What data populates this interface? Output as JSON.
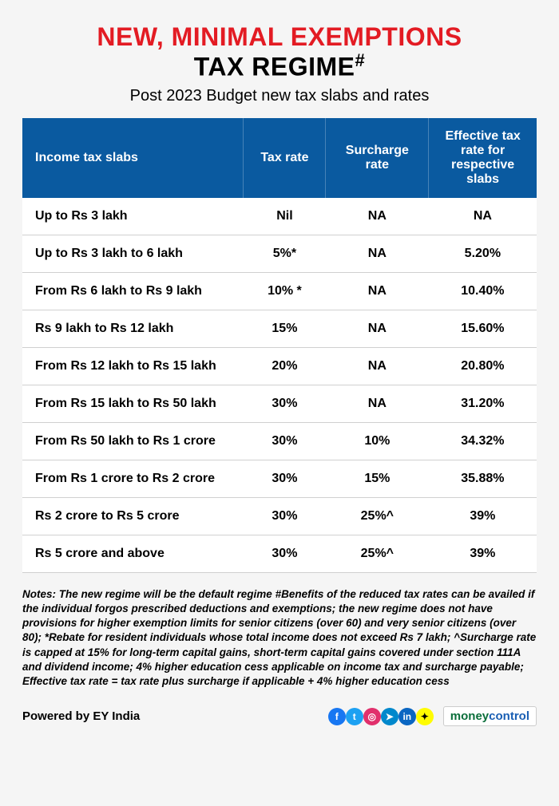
{
  "header": {
    "title_line1": "NEW, MINIMAL EXEMPTIONS",
    "title_line2_pre": "TAX REGIME",
    "title_line2_sup": "#",
    "title_color": "#e31b23",
    "subtitle": "Post 2023 Budget new tax slabs and rates"
  },
  "table": {
    "header_bg": "#0a5aa0",
    "row_border": "#d0d0d0",
    "columns": [
      "Income tax slabs",
      "Tax rate",
      "Surcharge rate",
      "Effective tax rate for respective slabs"
    ],
    "rows": [
      [
        "Up to Rs 3 lakh",
        "Nil",
        "NA",
        "NA"
      ],
      [
        "Up to Rs 3 lakh to 6 lakh",
        "5%*",
        "NA",
        "5.20%"
      ],
      [
        "From Rs 6 lakh to Rs 9 lakh",
        "10% *",
        "NA",
        "10.40%"
      ],
      [
        "Rs 9 lakh to Rs 12 lakh",
        "15%",
        "NA",
        "15.60%"
      ],
      [
        "From Rs 12 lakh to Rs 15 lakh",
        "20%",
        "NA",
        "20.80%"
      ],
      [
        "From Rs 15 lakh to Rs 50 lakh",
        "30%",
        "NA",
        "31.20%"
      ],
      [
        "From Rs 50 lakh to Rs 1 crore",
        "30%",
        "10%",
        "34.32%"
      ],
      [
        "From Rs 1 crore to Rs 2 crore",
        "30%",
        "15%",
        "35.88%"
      ],
      [
        "Rs 2 crore to Rs 5 crore",
        "30%",
        "25%^",
        "39%"
      ],
      [
        "Rs 5 crore and above",
        "30%",
        "25%^",
        "39%"
      ]
    ]
  },
  "notes": "Notes: The new regime will be the default regime #Benefits of the reduced tax rates can be availed if the individual forgos prescribed deductions and exemptions; the new regime does not have provisions for higher exemption limits for senior citizens (over 60) and very senior citizens (over 80); *Rebate for resident individuals whose total income does not exceed Rs 7 lakh; ^Surcharge rate is capped at 15% for long-term capital gains, short-term capital gains covered under section 111A and dividend income; 4% higher education cess applicable on income tax and surcharge payable; Effective tax rate = tax rate plus surcharge if applicable + 4% higher education cess",
  "footer": {
    "powered": "Powered by EY India",
    "socials": [
      {
        "name": "facebook",
        "glyph": "f",
        "bg": "#1877f2"
      },
      {
        "name": "twitter",
        "glyph": "t",
        "bg": "#1da1f2"
      },
      {
        "name": "instagram",
        "glyph": "◎",
        "bg": "#e1306c"
      },
      {
        "name": "telegram",
        "glyph": "➤",
        "bg": "#0088cc"
      },
      {
        "name": "linkedin",
        "glyph": "in",
        "bg": "#0a66c2"
      },
      {
        "name": "snapchat",
        "glyph": "✦",
        "bg": "#fffc00"
      }
    ],
    "brand1": "money",
    "brand2": "control"
  }
}
